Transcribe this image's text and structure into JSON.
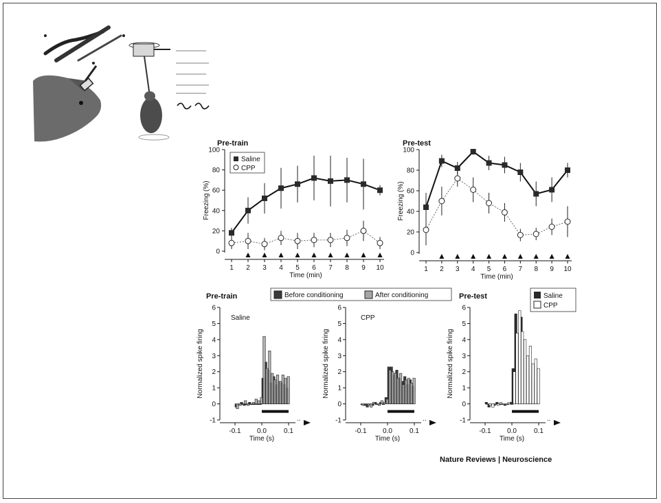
{
  "credit": "Nature Reviews | Neuroscience",
  "colors": {
    "saline": "#2a2a2a",
    "cpp": "#ffffff",
    "before": "#3a3a3a",
    "after": "#a6a6a6",
    "axis": "#111111"
  },
  "chart_data": [
    {
      "type": "line",
      "title": "Pre-train",
      "xlabel": "Time (min)",
      "ylabel": "Freezing (%)",
      "xlim": [
        1,
        10
      ],
      "ylim": [
        0,
        100
      ],
      "yticks": [
        0,
        20,
        40,
        60,
        80,
        100
      ],
      "x": [
        1,
        2,
        3,
        4,
        5,
        6,
        7,
        8,
        9,
        10
      ],
      "legend": [
        "Saline",
        "CPP"
      ],
      "series": [
        {
          "name": "Saline",
          "values": [
            18,
            40,
            52,
            62,
            66,
            72,
            69,
            70,
            66,
            60
          ],
          "err": [
            5,
            13,
            15,
            20,
            18,
            22,
            25,
            22,
            25,
            5
          ]
        },
        {
          "name": "CPP",
          "values": [
            8,
            10,
            7,
            13,
            10,
            11,
            11,
            13,
            20,
            8
          ],
          "err": [
            6,
            8,
            6,
            7,
            8,
            7,
            7,
            8,
            10,
            6
          ]
        }
      ],
      "stimulus_markers": [
        2,
        3,
        4,
        5,
        6,
        7,
        8,
        9,
        10
      ]
    },
    {
      "type": "line",
      "title": "Pre-test",
      "xlabel": "Time (min)",
      "ylabel": "Freezing (%)",
      "xlim": [
        1,
        10
      ],
      "ylim": [
        0,
        100
      ],
      "yticks": [
        0,
        20,
        40,
        60,
        80,
        100
      ],
      "x": [
        1,
        2,
        3,
        4,
        5,
        6,
        7,
        8,
        9,
        10
      ],
      "series": [
        {
          "name": "Saline",
          "values": [
            44,
            89,
            82,
            98,
            87,
            85,
            78,
            57,
            61,
            80
          ],
          "err": [
            14,
            6,
            6,
            3,
            7,
            8,
            9,
            12,
            12,
            7
          ]
        },
        {
          "name": "CPP",
          "values": [
            22,
            50,
            72,
            61,
            48,
            39,
            17,
            18,
            25,
            30
          ],
          "err": [
            15,
            14,
            8,
            12,
            10,
            9,
            6,
            6,
            8,
            15
          ]
        }
      ],
      "stimulus_markers": [
        2,
        3,
        4,
        5,
        6,
        7,
        8,
        9,
        10
      ]
    },
    {
      "type": "bar",
      "title": "Pre-train",
      "panel_label": "Saline",
      "xlabel": "Time (s)",
      "ylabel": "Normalized spike firing",
      "xticks": [
        "-0.1",
        "0.0",
        "0.1"
      ],
      "xlim": [
        -0.12,
        0.12
      ],
      "ylim": [
        -1,
        6
      ],
      "yticks": [
        -1,
        0,
        1,
        2,
        3,
        4,
        5,
        6
      ],
      "legend": [
        "Before conditioning",
        "After conditioning"
      ],
      "bin_start": -0.1,
      "bin_width": 0.01,
      "series": [
        {
          "name": "Before conditioning",
          "values": [
            -0.2,
            0.0,
            0.1,
            -0.1,
            0.0,
            0.1,
            0.0,
            0.0,
            0.0,
            0.0,
            1.6,
            2.6,
            2.1,
            1.3,
            1.7,
            1.2,
            1.4,
            1.3,
            1.2,
            1.0
          ]
        },
        {
          "name": "After conditioning",
          "values": [
            -0.3,
            -0.1,
            0.0,
            0.2,
            -0.1,
            0.0,
            0.1,
            0.3,
            0.2,
            0.4,
            4.2,
            2.2,
            3.3,
            1.9,
            1.5,
            1.8,
            1.4,
            1.8,
            1.6,
            1.7
          ]
        }
      ],
      "stimulus_bar": [
        0.0,
        0.1
      ]
    },
    {
      "type": "bar",
      "panel_label": "CPP",
      "xlabel": "Time (s)",
      "ylabel": "Normalized spike firing",
      "xticks": [
        "-0.1",
        "0.0",
        "0.1"
      ],
      "xlim": [
        -0.12,
        0.12
      ],
      "ylim": [
        -1,
        6
      ],
      "yticks": [
        -1,
        0,
        1,
        2,
        3,
        4,
        5,
        6
      ],
      "bin_start": -0.1,
      "bin_width": 0.01,
      "series": [
        {
          "name": "Before conditioning",
          "values": [
            0.0,
            -0.1,
            -0.2,
            0.0,
            -0.1,
            0.1,
            0.0,
            0.1,
            0.0,
            0.4,
            2.3,
            2.3,
            1.8,
            2.1,
            1.6,
            1.4,
            1.7,
            1.2,
            1.5,
            1.1
          ]
        },
        {
          "name": "After conditioning",
          "values": [
            -0.1,
            0.0,
            -0.1,
            -0.2,
            0.1,
            0.0,
            -0.1,
            0.2,
            0.1,
            0.3,
            2.1,
            2.0,
            1.9,
            1.6,
            1.9,
            1.2,
            1.5,
            1.6,
            1.3,
            1.6
          ]
        }
      ],
      "stimulus_bar": [
        0.0,
        0.1
      ]
    },
    {
      "type": "bar",
      "title": "Pre-test",
      "xlabel": "Time (s)",
      "ylabel": "Normalized spike firing",
      "xticks": [
        "-0.1",
        "0.0",
        "0.1"
      ],
      "xlim": [
        -0.12,
        0.12
      ],
      "ylim": [
        -1,
        6
      ],
      "yticks": [
        -1,
        0,
        1,
        2,
        3,
        4,
        5,
        6
      ],
      "legend": [
        "Saline",
        "CPP"
      ],
      "bin_start": -0.1,
      "bin_width": 0.01,
      "series": [
        {
          "name": "Saline",
          "values": [
            0.1,
            -0.2,
            0.0,
            -0.1,
            0.1,
            0.0,
            0.0,
            -0.1,
            0.0,
            0.1,
            2.2,
            5.6,
            3.5,
            5.4,
            3.8,
            2.8,
            2.0,
            1.6,
            1.4,
            0.8
          ]
        },
        {
          "name": "CPP",
          "values": [
            0.0,
            -0.1,
            -0.2,
            0.0,
            -0.1,
            0.1,
            0.0,
            0.0,
            0.1,
            0.0,
            2.0,
            4.4,
            5.8,
            4.5,
            4.0,
            3.0,
            3.6,
            2.5,
            2.8,
            2.2
          ]
        }
      ],
      "stimulus_bar": [
        0.0,
        0.1
      ]
    }
  ]
}
